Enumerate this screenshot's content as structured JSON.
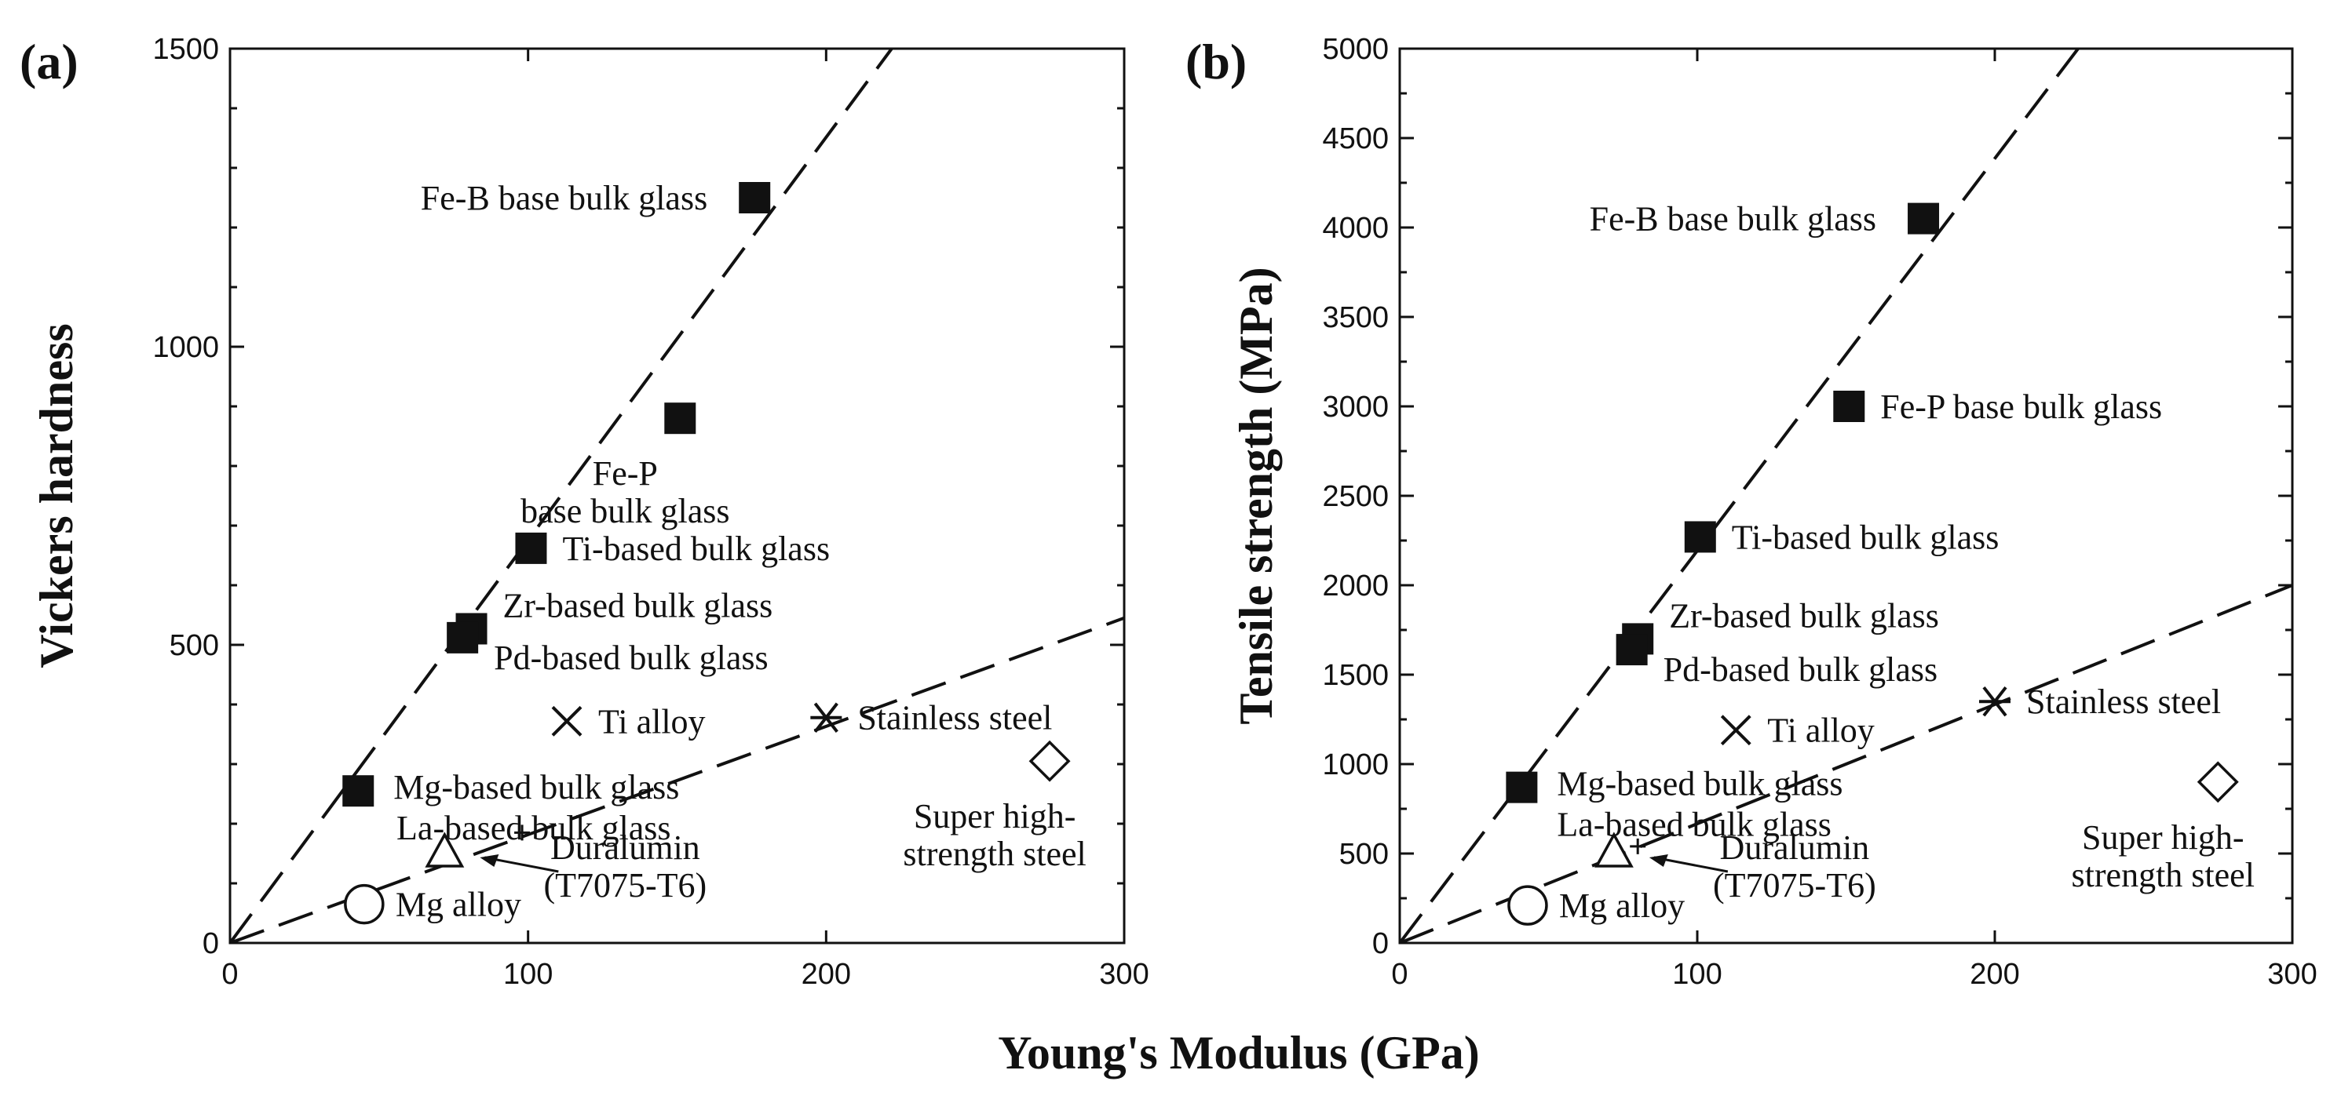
{
  "figure": {
    "xlabel": "Young's Modulus (GPa)"
  },
  "chart_data": [
    {
      "type": "scatter",
      "panel_tag": "(a)",
      "xlabel": "Young's Modulus (GPa)",
      "ylabel": "Vickers hardness",
      "xlim": [
        0,
        300
      ],
      "ylim": [
        0,
        1500
      ],
      "xticks": [
        0,
        100,
        200,
        300
      ],
      "yticks": [
        0,
        500,
        1000,
        1500
      ],
      "grid": false,
      "trend_lines": [
        {
          "name": "bulk glass trend",
          "style": "dashed",
          "x": [
            0,
            222
          ],
          "y": [
            0,
            1500
          ]
        },
        {
          "name": "crystalline alloy trend",
          "style": "dashed",
          "x": [
            0,
            300
          ],
          "y": [
            0,
            545
          ]
        }
      ],
      "points": [
        {
          "label": "Fe-B base bulk glass",
          "marker": "filled-square",
          "x": 176,
          "y": 1250,
          "label_side": "left"
        },
        {
          "label": "Fe-P base bulk glass",
          "marker": "filled-square",
          "x": 151,
          "y": 880,
          "label_side": "below"
        },
        {
          "label": "Ti-based bulk glass",
          "marker": "filled-square",
          "x": 101,
          "y": 662,
          "label_side": "right"
        },
        {
          "label": "Zr-based bulk glass",
          "marker": "filled-square",
          "x": 81,
          "y": 527,
          "label_side": "right-upper"
        },
        {
          "label": "Pd-based bulk glass",
          "marker": "filled-square",
          "x": 78,
          "y": 512,
          "label_side": "right-lower"
        },
        {
          "label": "Ti alloy",
          "marker": "x",
          "x": 113,
          "y": 372,
          "label_side": "right"
        },
        {
          "label": "Stainless steel",
          "marker": "asterisk",
          "x": 200,
          "y": 378,
          "label_side": "right"
        },
        {
          "label": "Mg-based bulk glass",
          "marker": "filled-square",
          "x": 43,
          "y": 255,
          "label_side": "right-upper"
        },
        {
          "label": "La-based bulk glass",
          "marker": "plus",
          "x": 98,
          "y": 185,
          "label_side": "left"
        },
        {
          "label": "Super high-strength steel",
          "marker": "diamond",
          "x": 275,
          "y": 305,
          "label_side": "below"
        },
        {
          "label": "Duralumin (T7075-T6)",
          "marker": "triangle",
          "x": 72,
          "y": 150,
          "label_side": "arrow-right"
        },
        {
          "label": "Mg alloy",
          "marker": "circle",
          "x": 45,
          "y": 65,
          "label_side": "right"
        }
      ]
    },
    {
      "type": "scatter",
      "panel_tag": "(b)",
      "xlabel": "Young's Modulus (GPa)",
      "ylabel": "Tensile strength (MPa)",
      "xlim": [
        0,
        300
      ],
      "ylim": [
        0,
        5000
      ],
      "xticks": [
        0,
        100,
        200,
        300
      ],
      "yticks": [
        0,
        500,
        1000,
        1500,
        2000,
        2500,
        3000,
        3500,
        4000,
        4500,
        5000
      ],
      "grid": false,
      "trend_lines": [
        {
          "name": "bulk glass trend",
          "style": "dashed",
          "x": [
            0,
            228
          ],
          "y": [
            0,
            5000
          ]
        },
        {
          "name": "crystalline alloy trend",
          "style": "dashed",
          "x": [
            0,
            300
          ],
          "y": [
            0,
            2000
          ]
        }
      ],
      "points": [
        {
          "label": "Fe-B base bulk glass",
          "marker": "filled-square",
          "x": 176,
          "y": 4050,
          "label_side": "left"
        },
        {
          "label": "Fe-P base bulk glass",
          "marker": "filled-square",
          "x": 151,
          "y": 3000,
          "label_side": "right"
        },
        {
          "label": "Ti-based bulk glass",
          "marker": "filled-square",
          "x": 101,
          "y": 2270,
          "label_side": "right"
        },
        {
          "label": "Zr-based bulk glass",
          "marker": "filled-square",
          "x": 80,
          "y": 1700,
          "label_side": "right-upper"
        },
        {
          "label": "Pd-based bulk glass",
          "marker": "filled-square",
          "x": 78,
          "y": 1640,
          "label_side": "right-lower"
        },
        {
          "label": "Ti alloy",
          "marker": "x",
          "x": 113,
          "y": 1190,
          "label_side": "right"
        },
        {
          "label": "Stainless steel",
          "marker": "asterisk",
          "x": 200,
          "y": 1350,
          "label_side": "right"
        },
        {
          "label": "Mg-based bulk glass",
          "marker": "filled-square",
          "x": 41,
          "y": 870,
          "label_side": "right-upper"
        },
        {
          "label": "La-based bulk glass",
          "marker": "plus",
          "x": 80,
          "y": 540,
          "label_side": "left"
        },
        {
          "label": "Super high-strength steel",
          "marker": "diamond",
          "x": 275,
          "y": 900,
          "label_side": "below"
        },
        {
          "label": "Duralumin (T7075-T6)",
          "marker": "triangle",
          "x": 72,
          "y": 500,
          "label_side": "arrow-right"
        },
        {
          "label": "Mg alloy",
          "marker": "circle",
          "x": 43,
          "y": 210,
          "label_side": "right"
        }
      ]
    }
  ]
}
